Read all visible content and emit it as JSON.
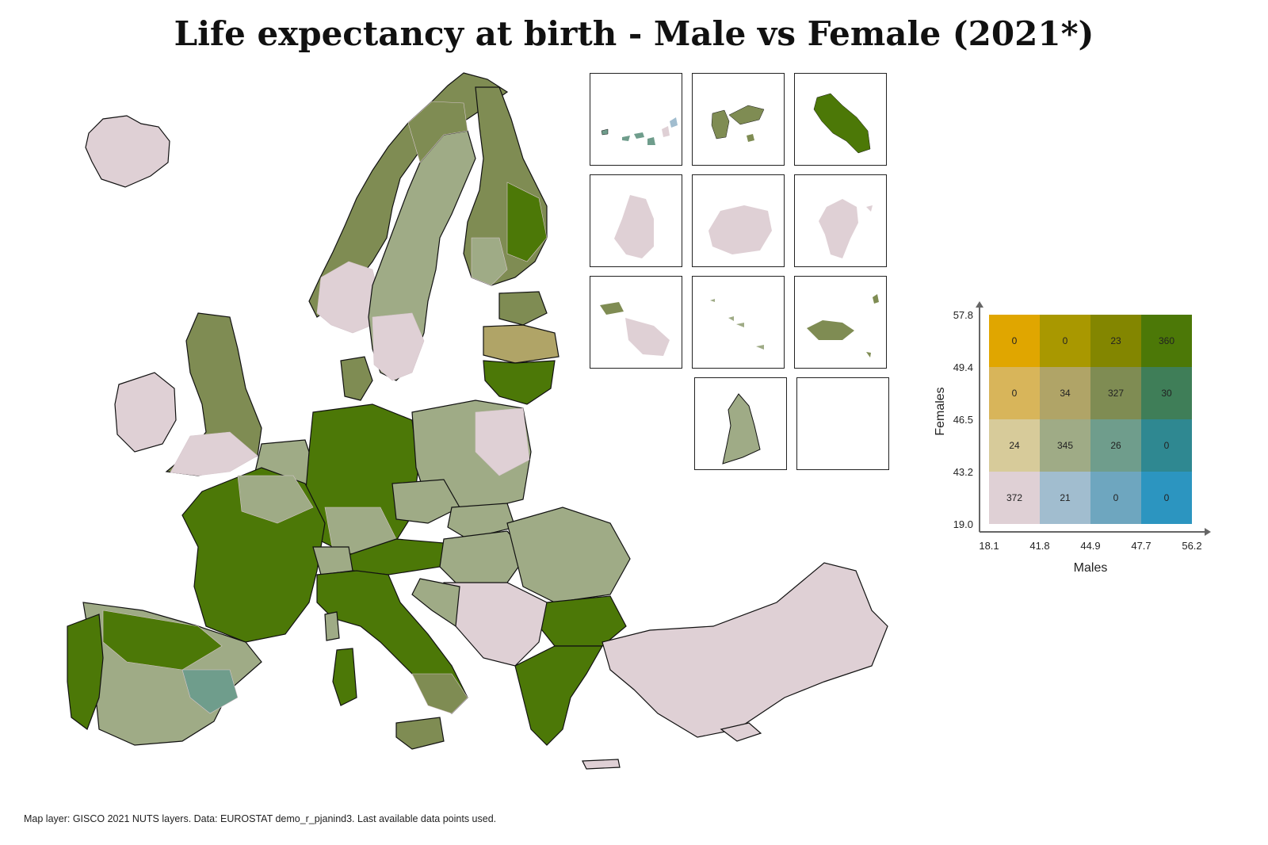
{
  "title": "Life expectancy at birth - Male vs Female (2021*)",
  "caption": "Map layer: GISCO 2021 NUTS layers. Data: EUROSTAT demo_r_pjanind3. Last available data points used.",
  "palette": {
    "pink": "#dfd0d5",
    "lightblue": "#a1bdcf",
    "midblue": "#6ea6bf",
    "blue": "#2c95c0",
    "sand": "#d7cb9a",
    "sage": "#9fab86",
    "teal": "#6f9d8c",
    "petrol": "#2f8891",
    "gold": "#d8b55a",
    "khaki": "#b0a467",
    "olive": "#7f8c53",
    "green": "#3f7e58",
    "orange": "#e0a600",
    "mustard": "#a99800",
    "darkolive": "#838600",
    "darkgreen": "#4c7807",
    "border": "#111111"
  },
  "legend": {
    "x_title": "Males",
    "y_title": "Females",
    "x_ticks": [
      "18.1",
      "41.8",
      "44.9",
      "47.7",
      "56.2"
    ],
    "y_ticks": [
      "57.8",
      "49.4",
      "46.5",
      "43.2",
      "19.0"
    ],
    "rows": [
      [
        {
          "count": "0",
          "color": "#e0a600"
        },
        {
          "count": "0",
          "color": "#a99800"
        },
        {
          "count": "23",
          "color": "#838600"
        },
        {
          "count": "360",
          "color": "#4c7807"
        }
      ],
      [
        {
          "count": "0",
          "color": "#d8b55a"
        },
        {
          "count": "34",
          "color": "#b0a467"
        },
        {
          "count": "327",
          "color": "#7f8c53"
        },
        {
          "count": "30",
          "color": "#3f7e58"
        }
      ],
      [
        {
          "count": "24",
          "color": "#d7cb9a"
        },
        {
          "count": "345",
          "color": "#9fab86"
        },
        {
          "count": "26",
          "color": "#6f9d8c"
        },
        {
          "count": "0",
          "color": "#2f8891"
        }
      ],
      [
        {
          "count": "372",
          "color": "#dfd0d5"
        },
        {
          "count": "21",
          "color": "#a1bdcf"
        },
        {
          "count": "0",
          "color": "#6ea6bf"
        },
        {
          "count": "0",
          "color": "#2c95c0"
        }
      ]
    ]
  }
}
